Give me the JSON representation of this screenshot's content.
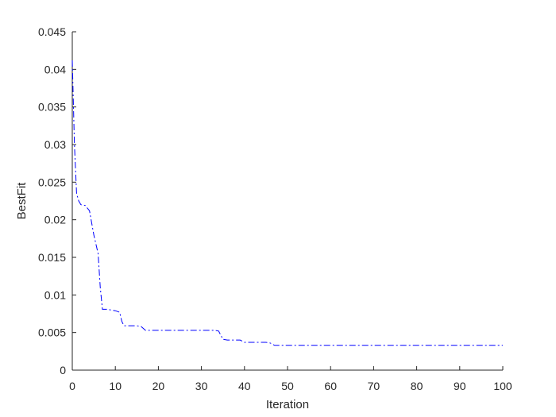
{
  "chart_data": {
    "type": "line",
    "title": "",
    "xlabel": "Iteration",
    "ylabel": "BestFit",
    "xlim": [
      0,
      100
    ],
    "ylim": [
      0,
      0.045
    ],
    "x_ticks": [
      0,
      10,
      20,
      30,
      40,
      50,
      60,
      70,
      80,
      90,
      100
    ],
    "y_ticks": [
      0,
      0.005,
      0.01,
      0.015,
      0.02,
      0.025,
      0.03,
      0.035,
      0.04,
      0.045
    ],
    "x_tick_labels": [
      "0",
      "10",
      "20",
      "30",
      "40",
      "50",
      "60",
      "70",
      "80",
      "90",
      "100"
    ],
    "y_tick_labels": [
      "0",
      "0.005",
      "0.01",
      "0.015",
      "0.02",
      "0.025",
      "0.03",
      "0.035",
      "0.04",
      "0.045"
    ],
    "grid": false,
    "legend": "none",
    "series": [
      {
        "color": "#0000ff",
        "line_style": "dash-dot",
        "x": [
          0,
          0.5,
          1,
          1.5,
          2,
          3,
          4,
          5,
          6,
          6.5,
          7,
          8,
          9,
          10,
          11,
          11.5,
          12,
          13,
          14,
          15,
          16,
          17,
          18,
          20,
          22,
          25,
          28,
          30,
          33,
          34,
          35,
          36,
          38,
          39,
          40,
          42,
          44,
          45,
          46,
          47,
          50,
          60,
          70,
          80,
          90,
          100
        ],
        "y": [
          0.0412,
          0.03,
          0.0235,
          0.0225,
          0.022,
          0.0219,
          0.0212,
          0.018,
          0.0155,
          0.011,
          0.0081,
          0.0081,
          0.008,
          0.0079,
          0.0077,
          0.0065,
          0.0059,
          0.0059,
          0.0059,
          0.0059,
          0.0058,
          0.0053,
          0.0053,
          0.0053,
          0.0053,
          0.0053,
          0.0053,
          0.0053,
          0.0053,
          0.0052,
          0.0041,
          0.004,
          0.004,
          0.004,
          0.0037,
          0.0037,
          0.0037,
          0.0037,
          0.0036,
          0.0033,
          0.0033,
          0.0033,
          0.0033,
          0.0033,
          0.0033,
          0.0033
        ]
      }
    ]
  }
}
